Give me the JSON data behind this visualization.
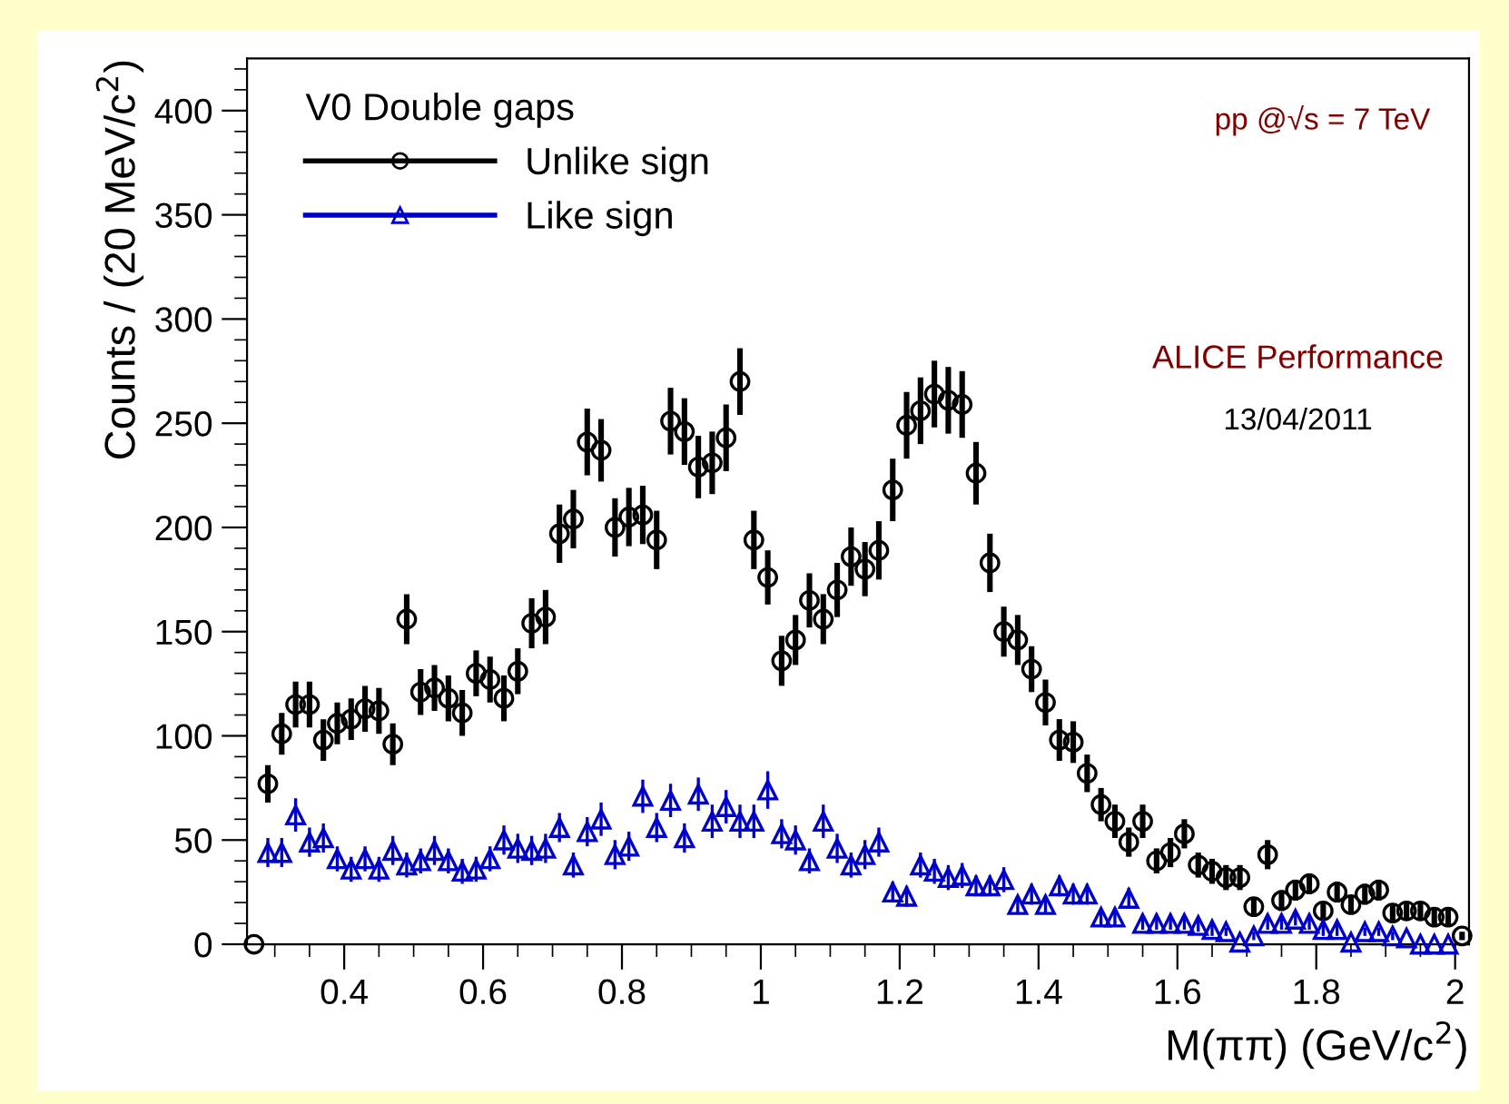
{
  "chart_data": {
    "type": "scatter",
    "xlabel": "M(ππ) (GeV/c$^{2}$)",
    "ylabel": "Counts / (20 MeV/c$^{2}$)",
    "legend_title": "V0 Double gaps",
    "legend": "top left",
    "annotations": [
      "pp @√s = 7 TeV",
      "ALICE Performance",
      "13/04/2011"
    ],
    "xlim": [
      0.26,
      2.02
    ],
    "xticks": [
      0.4,
      0.6,
      0.8,
      1,
      1.2,
      1.4,
      1.6,
      1.8,
      2
    ],
    "ylim": [
      0,
      425
    ],
    "yticks": [
      0,
      50,
      100,
      150,
      200,
      250,
      300,
      350,
      400
    ],
    "grid": false,
    "x": [
      0.27,
      0.29,
      0.31,
      0.33,
      0.35,
      0.37,
      0.39,
      0.41,
      0.43,
      0.45,
      0.47,
      0.49,
      0.51,
      0.53,
      0.55,
      0.57,
      0.59,
      0.61,
      0.63,
      0.65,
      0.67,
      0.69,
      0.71,
      0.73,
      0.75,
      0.77,
      0.79,
      0.81,
      0.83,
      0.85,
      0.87,
      0.89,
      0.91,
      0.93,
      0.95,
      0.97,
      0.99,
      1.01,
      1.03,
      1.05,
      1.07,
      1.09,
      1.11,
      1.13,
      1.15,
      1.17,
      1.19,
      1.21,
      1.23,
      1.25,
      1.27,
      1.29,
      1.31,
      1.33,
      1.35,
      1.37,
      1.39,
      1.41,
      1.43,
      1.45,
      1.47,
      1.49,
      1.51,
      1.53,
      1.55,
      1.57,
      1.59,
      1.61,
      1.63,
      1.65,
      1.67,
      1.69,
      1.71,
      1.73,
      1.75,
      1.77,
      1.79,
      1.81,
      1.83,
      1.85,
      1.87,
      1.89,
      1.91,
      1.93,
      1.95,
      1.97,
      1.99,
      2.01
    ],
    "series": [
      {
        "name": "Unlike sign",
        "color": "#000000",
        "marker": "circle",
        "values": [
          0,
          77,
          101,
          115,
          115,
          98,
          106,
          108,
          113,
          112,
          96,
          156,
          121,
          123,
          118,
          111,
          130,
          127,
          118,
          131,
          154,
          157,
          197,
          204,
          241,
          237,
          200,
          205,
          206,
          194,
          251,
          246,
          229,
          231,
          243,
          270,
          194,
          176,
          136,
          146,
          165,
          156,
          170,
          186,
          180,
          189,
          218,
          249,
          256,
          264,
          261,
          259,
          226,
          183,
          150,
          146,
          132,
          116,
          98,
          97,
          82,
          67,
          59,
          49,
          59,
          40,
          44,
          53,
          38,
          35,
          32,
          32,
          18,
          43,
          21,
          26,
          29,
          16,
          25,
          19,
          24,
          26,
          15,
          16,
          16,
          13,
          13,
          4
        ],
        "errors": [
          null,
          9,
          10,
          11,
          11,
          10,
          10,
          10,
          11,
          11,
          10,
          12,
          11,
          11,
          11,
          11,
          11,
          11,
          11,
          11,
          12,
          13,
          14,
          14,
          16,
          15,
          14,
          14,
          14,
          14,
          16,
          16,
          15,
          15,
          16,
          16,
          14,
          13,
          12,
          12,
          13,
          12,
          13,
          14,
          13,
          14,
          15,
          16,
          16,
          16,
          16,
          16,
          15,
          14,
          12,
          12,
          11,
          11,
          10,
          10,
          9,
          8,
          8,
          7,
          8,
          6,
          7,
          7,
          6,
          6,
          6,
          6,
          4,
          7,
          5,
          5,
          5,
          4,
          5,
          4,
          5,
          5,
          4,
          4,
          4,
          4,
          4,
          2
        ]
      },
      {
        "name": "Like sign",
        "color": "#0000cc",
        "marker": "triangle",
        "values": [
          null,
          44,
          44,
          62,
          49,
          51,
          41,
          36,
          41,
          36,
          45,
          38,
          40,
          45,
          40,
          35,
          36,
          41,
          50,
          46,
          45,
          46,
          56,
          38,
          54,
          60,
          43,
          47,
          71,
          56,
          69,
          51,
          72,
          59,
          66,
          59,
          59,
          74,
          53,
          50,
          40,
          59,
          46,
          38,
          43,
          49,
          25,
          23,
          38,
          35,
          32,
          33,
          28,
          28,
          31,
          19,
          24,
          19,
          28,
          24,
          24,
          13,
          13,
          22,
          10,
          10,
          10,
          10,
          9,
          7,
          6,
          1,
          4,
          10,
          10,
          12,
          10,
          7,
          7,
          1,
          6,
          6,
          4,
          3,
          0,
          0,
          0,
          null
        ],
        "errors": [
          null,
          7,
          7,
          8,
          7,
          7,
          6,
          6,
          6,
          6,
          7,
          6,
          6,
          7,
          6,
          6,
          6,
          6,
          7,
          7,
          7,
          7,
          7,
          6,
          7,
          8,
          7,
          7,
          8,
          7,
          8,
          7,
          8,
          8,
          8,
          8,
          8,
          9,
          7,
          7,
          6,
          8,
          7,
          6,
          7,
          7,
          5,
          5,
          6,
          6,
          6,
          6,
          5,
          5,
          6,
          4,
          5,
          4,
          5,
          5,
          5,
          4,
          4,
          5,
          3,
          3,
          3,
          3,
          3,
          3,
          2,
          null,
          2,
          3,
          3,
          3,
          3,
          3,
          3,
          null,
          2,
          2,
          2,
          null,
          null,
          null,
          null,
          null
        ]
      }
    ]
  }
}
